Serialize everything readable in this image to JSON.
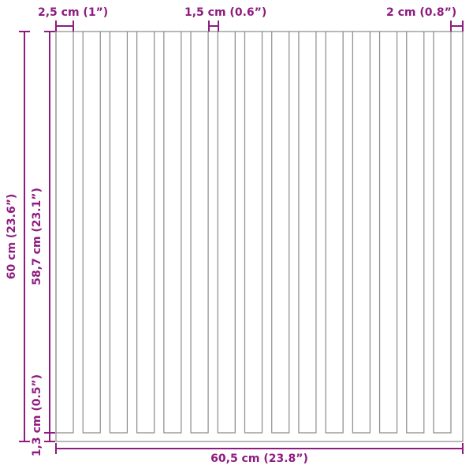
{
  "diagram": {
    "accent_color": "#8e1c80",
    "line_color": "#8a8a8a",
    "slat_count": 15,
    "dimensions": {
      "slat_width": "2,5 cm (1”)",
      "gap_width": "1,5 cm (0.6”)",
      "edge_width": "2 cm (0.8”)",
      "total_height": "60 cm (23.6”)",
      "slat_height": "58,7 cm (23.1”)",
      "base_height": "1,3 cm (0.5”)",
      "total_width": "60,5 cm (23.8”)"
    }
  }
}
